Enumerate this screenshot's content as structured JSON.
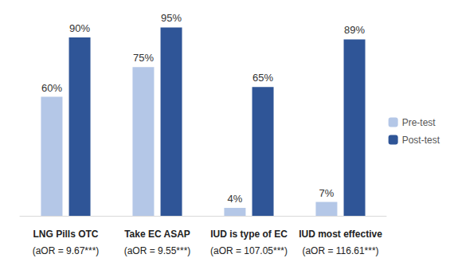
{
  "chart_data": {
    "type": "bar",
    "categories": [
      "LNG Pills OTC",
      "Take EC ASAP",
      "IUD is type of EC",
      "IUD most effective"
    ],
    "annotations": [
      "(aOR = 9.67***)",
      "(aOR = 9.55***)",
      "(aOR = 107.05***)",
      "(aOR = 116.61***)"
    ],
    "series": [
      {
        "name": "Pre-test",
        "color": "#b4c7e7",
        "values": [
          60,
          75,
          4,
          7
        ],
        "value_labels": [
          "60%",
          "75%",
          "4%",
          "7%"
        ]
      },
      {
        "name": "Post-test",
        "color": "#2f5597",
        "values": [
          90,
          95,
          65,
          89
        ],
        "value_labels": [
          "90%",
          "95%",
          "65%",
          "89%"
        ]
      }
    ],
    "ylim": [
      0,
      100
    ],
    "grid": false,
    "legend": "right",
    "data_labels": true,
    "tick_labels": "x"
  }
}
